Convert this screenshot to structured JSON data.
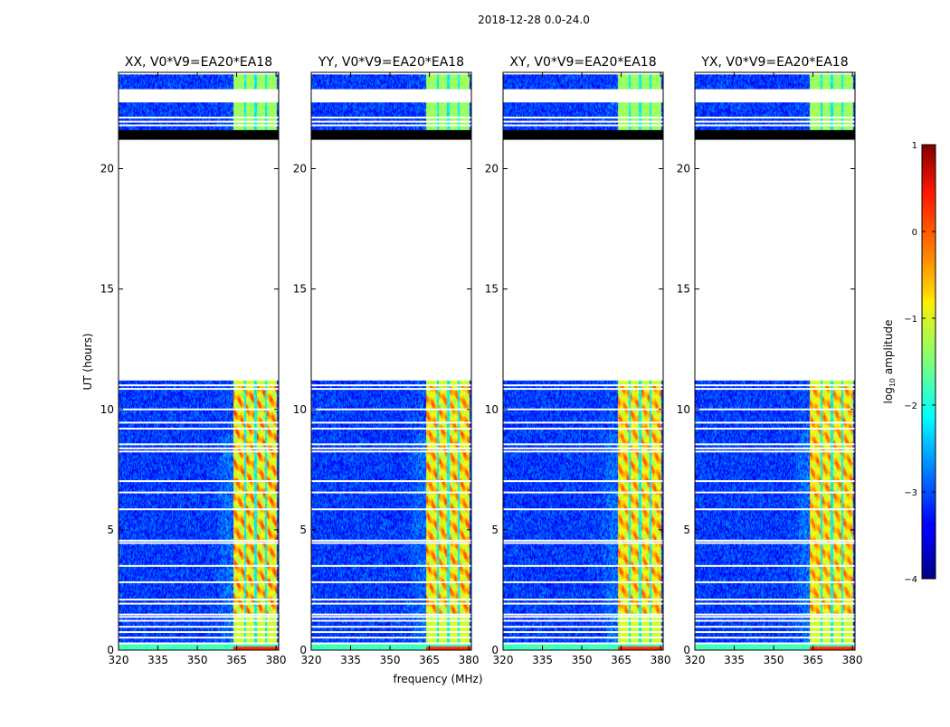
{
  "chart_data": {
    "type": "heatmap",
    "title": "2018-12-28 0.0-24.0",
    "xlabel": "frequency (MHz)",
    "ylabel": "UT (hours)",
    "xlim": [
      320,
      381
    ],
    "ylim": [
      0,
      24
    ],
    "xticks": [
      320,
      335,
      350,
      365,
      380
    ],
    "yticks": [
      0,
      5,
      10,
      15,
      20
    ],
    "panels": [
      {
        "title": "XX, V0*V9=EA20*EA18",
        "strength": 1.0
      },
      {
        "title": "YY, V0*V9=EA20*EA18",
        "strength": 0.9
      },
      {
        "title": "XY, V0*V9=EA20*EA18",
        "strength": 0.85
      },
      {
        "title": "YX, V0*V9=EA20*EA18",
        "strength": 0.8
      }
    ],
    "colorbar": {
      "label": "log10 amplitude",
      "label_main": "log",
      "label_sub": "10",
      "label_rest": " amplitude",
      "range": [
        -4,
        1
      ],
      "ticks": [
        "1",
        "0",
        "−1",
        "−2",
        "−3",
        "−4"
      ],
      "tick_values": [
        1,
        0,
        -1,
        -2,
        -3,
        -4
      ]
    },
    "no_data_ranges_hours": [
      [
        11.2,
        21.2
      ],
      [
        22.75,
        23.3
      ]
    ],
    "flagged_black_ranges_hours": [
      [
        21.2,
        21.6
      ]
    ],
    "flag_lines_hours": [
      0.28,
      0.52,
      0.75,
      0.97,
      1.22,
      1.38,
      1.48,
      1.93,
      2.1,
      2.82,
      3.5,
      4.45,
      4.55,
      5.85,
      6.55,
      7.02,
      8.25,
      8.38,
      8.55,
      9.2,
      9.45,
      10.0,
      10.85,
      11.0,
      21.8,
      21.95,
      22.12,
      23.95
    ],
    "rfi_channel_edges_mhz": [
      363.5,
      368,
      372,
      376,
      380
    ]
  }
}
